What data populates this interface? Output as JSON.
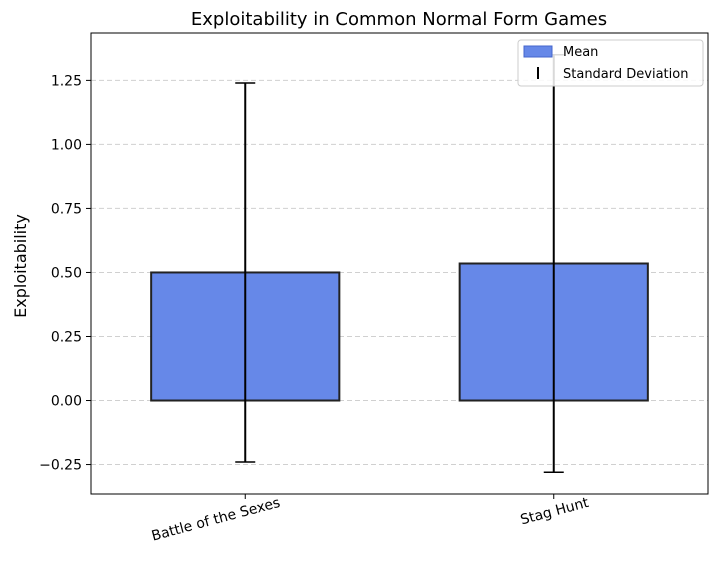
{
  "chart_data": {
    "type": "bar",
    "title": "Exploitability in Common Normal Form Games",
    "xlabel": "",
    "ylabel": "Exploitability",
    "categories": [
      "Battle of the Sexes",
      "Stag Hunt"
    ],
    "series": [
      {
        "name": "Mean",
        "values": [
          0.5,
          0.535
        ],
        "std": [
          0.74,
          0.815
        ],
        "color": "#6688e8"
      }
    ],
    "error_label": "Standard Deviation",
    "ylim": [
      -0.365,
      1.435
    ],
    "yticks": [
      -0.25,
      0.0,
      0.25,
      0.5,
      0.75,
      1.0,
      1.25
    ],
    "ytick_labels": [
      "−0.25",
      "0.00",
      "0.25",
      "0.50",
      "0.75",
      "1.00",
      "1.25"
    ],
    "grid": "y-dashed",
    "legend_position": "top-right",
    "xtick_rotation": "slanted"
  }
}
